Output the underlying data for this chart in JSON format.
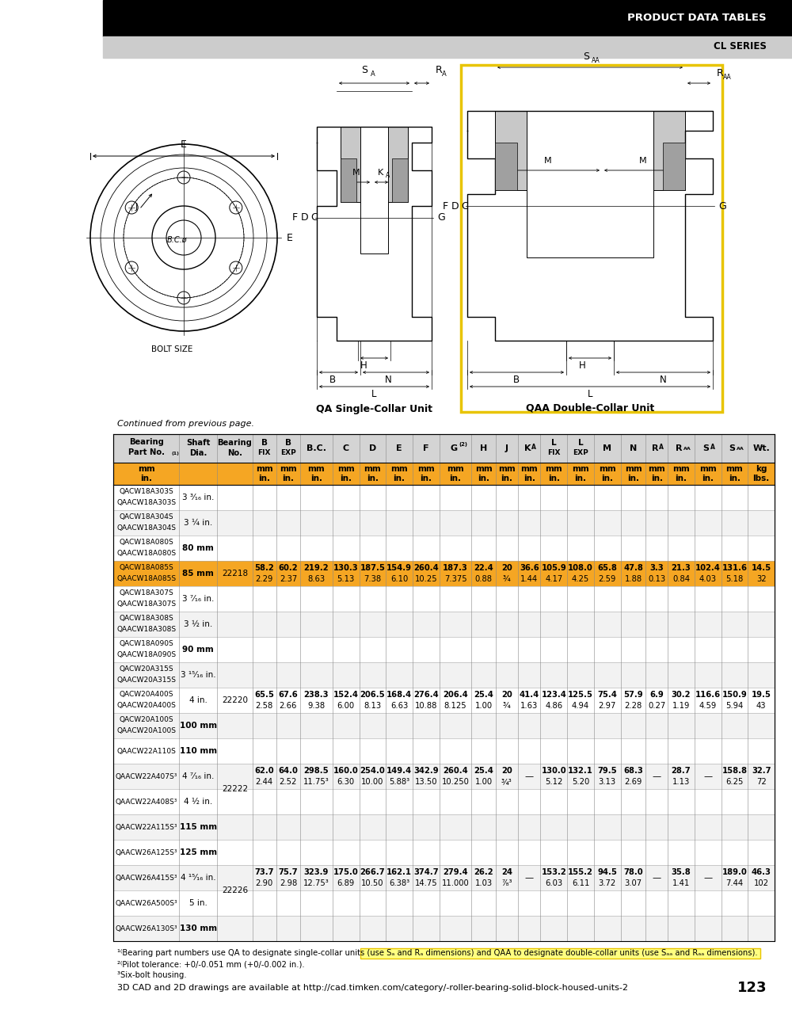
{
  "header_black_text": "PRODUCT DATA TABLES",
  "header_gray_text": "CL SERIES",
  "continued_text": "Continued from previous page.",
  "rows": [
    {
      "part1": "QACW18A303S",
      "part2": "QAACW18A303S",
      "shaft": "3 ³⁄₁₆ in.",
      "shaft_bold": false,
      "bearing": "",
      "b_fix": "",
      "b_exp": "",
      "bc": "",
      "c": "",
      "d": "",
      "e": "",
      "f": "",
      "g": "",
      "h": "",
      "j": "",
      "ka": "",
      "l_fix": "",
      "l_exp": "",
      "m": "",
      "n": "",
      "ra": "",
      "raa": "",
      "sa": "",
      "saa": "",
      "wt": ""
    },
    {
      "part1": "QACW18A304S",
      "part2": "QAACW18A304S",
      "shaft": "3 ¼ in.",
      "shaft_bold": false,
      "bearing": "",
      "b_fix": "",
      "b_exp": "",
      "bc": "",
      "c": "",
      "d": "",
      "e": "",
      "f": "",
      "g": "",
      "h": "",
      "j": "",
      "ka": "",
      "l_fix": "",
      "l_exp": "",
      "m": "",
      "n": "",
      "ra": "",
      "raa": "",
      "sa": "",
      "saa": "",
      "wt": ""
    },
    {
      "part1": "QACW18A080S",
      "part2": "QAACW18A080S",
      "shaft": "80 mm",
      "shaft_bold": true,
      "bearing": "",
      "b_fix": "",
      "b_exp": "",
      "bc": "",
      "c": "",
      "d": "",
      "e": "",
      "f": "",
      "g": "",
      "h": "",
      "j": "",
      "ka": "",
      "l_fix": "",
      "l_exp": "",
      "m": "",
      "n": "",
      "ra": "",
      "raa": "",
      "sa": "",
      "saa": "",
      "wt": ""
    },
    {
      "part1": "QACW18A085S",
      "part2": "QAACW18A085S",
      "shaft": "85 mm",
      "shaft_bold": true,
      "bearing": "22218",
      "b_fix": "58.2",
      "b_fix2": "2.29",
      "b_exp": "60.2",
      "b_exp2": "2.37",
      "bc": "219.2",
      "bc2": "8.63",
      "c": "130.3",
      "c2": "5.13",
      "d": "187.5",
      "d2": "7.38",
      "e": "154.9",
      "e2": "6.10",
      "f": "260.4",
      "f2": "10.25",
      "g": "187.3",
      "g2": "7.375",
      "h": "22.4",
      "h2": "0.88",
      "j": "20",
      "j2": "¾",
      "ka": "36.6",
      "ka2": "1.44",
      "l_fix": "105.9",
      "l_fix2": "4.17",
      "l_exp": "108.0",
      "l_exp2": "4.25",
      "m": "65.8",
      "m2": "2.59",
      "n": "47.8",
      "n2": "1.88",
      "ra": "3.3",
      "ra2": "0.13",
      "raa": "21.3",
      "raa2": "0.84",
      "sa": "102.4",
      "sa2": "4.03",
      "saa": "131.6",
      "saa2": "5.18",
      "wt": "14.5",
      "wt2": "32",
      "highlight": true
    },
    {
      "part1": "QACW18A307S",
      "part2": "QAACW18A307S",
      "shaft": "3 ⁷⁄₁₆ in.",
      "shaft_bold": false,
      "bearing": "",
      "b_fix": "",
      "b_exp": "",
      "bc": "",
      "c": "",
      "d": "",
      "e": "",
      "f": "",
      "g": "",
      "h": "",
      "j": "",
      "ka": "",
      "l_fix": "",
      "l_exp": "",
      "m": "",
      "n": "",
      "ra": "",
      "raa": "",
      "sa": "",
      "saa": "",
      "wt": ""
    },
    {
      "part1": "QACW18A308S",
      "part2": "QAACW18A308S",
      "shaft": "3 ½ in.",
      "shaft_bold": false,
      "bearing": "",
      "b_fix": "",
      "b_exp": "",
      "bc": "",
      "c": "",
      "d": "",
      "e": "",
      "f": "",
      "g": "",
      "h": "",
      "j": "",
      "ka": "",
      "l_fix": "",
      "l_exp": "",
      "m": "",
      "n": "",
      "ra": "",
      "raa": "",
      "sa": "",
      "saa": "",
      "wt": ""
    },
    {
      "part1": "QACW18A090S",
      "part2": "QAACW18A090S",
      "shaft": "90 mm",
      "shaft_bold": true,
      "bearing": "",
      "b_fix": "",
      "b_exp": "",
      "bc": "",
      "c": "",
      "d": "",
      "e": "",
      "f": "",
      "g": "",
      "h": "",
      "j": "",
      "ka": "",
      "l_fix": "",
      "l_exp": "",
      "m": "",
      "n": "",
      "ra": "",
      "raa": "",
      "sa": "",
      "saa": "",
      "wt": ""
    },
    {
      "part1": "QACW20A315S",
      "part2": "QAACW20A315S",
      "shaft": "3 ¹⁵⁄₁₆ in.",
      "shaft_bold": false,
      "bearing": "",
      "b_fix": "",
      "b_exp": "",
      "bc": "",
      "c": "",
      "d": "",
      "e": "",
      "f": "",
      "g": "",
      "h": "",
      "j": "",
      "ka": "",
      "l_fix": "",
      "l_exp": "",
      "m": "",
      "n": "",
      "ra": "",
      "raa": "",
      "sa": "",
      "saa": "",
      "wt": ""
    },
    {
      "part1": "QACW20A400S",
      "part2": "QAACW20A400S",
      "shaft": "4 in.",
      "shaft_bold": false,
      "bearing": "22220",
      "b_fix": "65.5",
      "b_fix2": "2.58",
      "b_exp": "67.6",
      "b_exp2": "2.66",
      "bc": "238.3",
      "bc2": "9.38",
      "c": "152.4",
      "c2": "6.00",
      "d": "206.5",
      "d2": "8.13",
      "e": "168.4",
      "e2": "6.63",
      "f": "276.4",
      "f2": "10.88",
      "g": "206.4",
      "g2": "8.125",
      "h": "25.4",
      "h2": "1.00",
      "j": "20",
      "j2": "¾",
      "ka": "41.4",
      "ka2": "1.63",
      "l_fix": "123.4",
      "l_fix2": "4.86",
      "l_exp": "125.5",
      "l_exp2": "4.94",
      "m": "75.4",
      "m2": "2.97",
      "n": "57.9",
      "n2": "2.28",
      "ra": "6.9",
      "ra2": "0.27",
      "raa": "30.2",
      "raa2": "1.19",
      "sa": "116.6",
      "sa2": "4.59",
      "saa": "150.9",
      "saa2": "5.94",
      "wt": "19.5",
      "wt2": "43"
    },
    {
      "part1": "QACW20A100S",
      "part2": "QAACW20A100S",
      "shaft": "100 mm",
      "shaft_bold": true,
      "bearing": "",
      "b_fix": "",
      "b_exp": "",
      "bc": "",
      "c": "",
      "d": "",
      "e": "",
      "f": "",
      "g": "",
      "h": "",
      "j": "",
      "ka": "",
      "l_fix": "",
      "l_exp": "",
      "m": "",
      "n": "",
      "ra": "",
      "raa": "",
      "sa": "",
      "saa": "",
      "wt": ""
    },
    {
      "part1": "QAACW22A110S",
      "part2": "",
      "shaft": "110 mm",
      "shaft_bold": true,
      "bearing": "",
      "b_fix": "",
      "b_exp": "",
      "bc": "",
      "c": "",
      "d": "",
      "e": "",
      "f": "",
      "g": "",
      "h": "",
      "j": "",
      "ka": "",
      "l_fix": "",
      "l_exp": "",
      "m": "",
      "n": "",
      "ra": "",
      "raa": "",
      "sa": "",
      "saa": "",
      "wt": ""
    },
    {
      "part1": "QAACW22A407S³",
      "part2": "",
      "shaft": "4 ⁷⁄₁₆ in.",
      "shaft_bold": false,
      "bearing": "22222",
      "b_fix": "62.0",
      "b_fix2": "2.44",
      "b_exp": "64.0",
      "b_exp2": "2.52",
      "bc": "298.5",
      "bc2": "11.75³",
      "c": "160.0",
      "c2": "6.30",
      "d": "254.0",
      "d2": "10.00",
      "e": "149.4",
      "e2": "5.88³",
      "f": "342.9",
      "f2": "13.50",
      "g": "260.4",
      "g2": "10.250",
      "h": "25.4",
      "h2": "1.00",
      "j": "20",
      "j2": "¾³",
      "ka": "—",
      "ka2": "",
      "l_fix": "130.0",
      "l_fix2": "5.12",
      "l_exp": "132.1",
      "l_exp2": "5.20",
      "m": "79.5",
      "m2": "3.13",
      "n": "68.3",
      "n2": "2.69",
      "ra": "—",
      "ra2": "",
      "raa": "28.7",
      "raa2": "1.13",
      "sa": "—",
      "sa2": "",
      "saa": "158.8",
      "saa2": "6.25",
      "wt": "32.7",
      "wt2": "72"
    },
    {
      "part1": "QAACW22A408S³",
      "part2": "",
      "shaft": "4 ½ in.",
      "shaft_bold": false,
      "bearing": "",
      "b_fix": "",
      "b_exp": "",
      "bc": "",
      "c": "",
      "d": "",
      "e": "",
      "f": "",
      "g": "",
      "h": "",
      "j": "",
      "ka": "",
      "l_fix": "",
      "l_exp": "",
      "m": "",
      "n": "",
      "ra": "",
      "raa": "",
      "sa": "",
      "saa": "",
      "wt": ""
    },
    {
      "part1": "QAACW22A115S³",
      "part2": "",
      "shaft": "115 mm",
      "shaft_bold": true,
      "bearing": "",
      "b_fix": "",
      "b_exp": "",
      "bc": "",
      "c": "",
      "d": "",
      "e": "",
      "f": "",
      "g": "",
      "h": "",
      "j": "",
      "ka": "",
      "l_fix": "",
      "l_exp": "",
      "m": "",
      "n": "",
      "ra": "",
      "raa": "",
      "sa": "",
      "saa": "",
      "wt": ""
    },
    {
      "part1": "QAACW26A125S³",
      "part2": "",
      "shaft": "125 mm",
      "shaft_bold": true,
      "bearing": "",
      "b_fix": "",
      "b_exp": "",
      "bc": "",
      "c": "",
      "d": "",
      "e": "",
      "f": "",
      "g": "",
      "h": "",
      "j": "",
      "ka": "",
      "l_fix": "",
      "l_exp": "",
      "m": "",
      "n": "",
      "ra": "",
      "raa": "",
      "sa": "",
      "saa": "",
      "wt": ""
    },
    {
      "part1": "QAACW26A415S³",
      "part2": "",
      "shaft": "4 ¹⁵⁄₁₆ in.",
      "shaft_bold": false,
      "bearing": "22226",
      "b_fix": "73.7",
      "b_fix2": "2.90",
      "b_exp": "75.7",
      "b_exp2": "2.98",
      "bc": "323.9",
      "bc2": "12.75³",
      "c": "175.0",
      "c2": "6.89",
      "d": "266.7",
      "d2": "10.50",
      "e": "162.1",
      "e2": "6.38³",
      "f": "374.7",
      "f2": "14.75",
      "g": "279.4",
      "g2": "11.000",
      "h": "26.2",
      "h2": "1.03",
      "j": "24",
      "j2": "⁷⁄₈³",
      "ka": "—",
      "ka2": "",
      "l_fix": "153.2",
      "l_fix2": "6.03",
      "l_exp": "155.2",
      "l_exp2": "6.11",
      "m": "94.5",
      "m2": "3.72",
      "n": "78.0",
      "n2": "3.07",
      "ra": "—",
      "ra2": "",
      "raa": "35.8",
      "raa2": "1.41",
      "sa": "—",
      "sa2": "",
      "saa": "189.0",
      "saa2": "7.44",
      "wt": "46.3",
      "wt2": "102"
    },
    {
      "part1": "QAACW26A500S³",
      "part2": "",
      "shaft": "5 in.",
      "shaft_bold": false,
      "bearing": "",
      "b_fix": "",
      "b_exp": "",
      "bc": "",
      "c": "",
      "d": "",
      "e": "",
      "f": "",
      "g": "",
      "h": "",
      "j": "",
      "ka": "",
      "l_fix": "",
      "l_exp": "",
      "m": "",
      "n": "",
      "ra": "",
      "raa": "",
      "sa": "",
      "saa": "",
      "wt": ""
    },
    {
      "part1": "QAACW26A130S³",
      "part2": "",
      "shaft": "130 mm",
      "shaft_bold": true,
      "bearing": "",
      "b_fix": "",
      "b_exp": "",
      "bc": "",
      "c": "",
      "d": "",
      "e": "",
      "f": "",
      "g": "",
      "h": "",
      "j": "",
      "ka": "",
      "l_fix": "",
      "l_exp": "",
      "m": "",
      "n": "",
      "ra": "",
      "raa": "",
      "sa": "",
      "saa": "",
      "wt": ""
    }
  ],
  "merge_groups": [
    {
      "rows": [
        0,
        1,
        2,
        3,
        4,
        5,
        6
      ],
      "data_row": 3
    },
    {
      "rows": [
        7,
        8,
        9
      ],
      "data_row": 8
    },
    {
      "rows": [
        10,
        11,
        12,
        13
      ],
      "data_row": 11
    },
    {
      "rows": [
        14,
        15,
        16,
        17
      ],
      "data_row": 15
    }
  ],
  "footnote1": "¹⁽Bearing part numbers use QA to designate single-collar units (use S",
  "footnote1b": "A",
  "footnote1c": " and R",
  "footnote1d": "A",
  "footnote1e": " dimensions) and ",
  "footnote1f": "QAA to designate double-collar units (use S",
  "footnote1g": "AA",
  "footnote1h": " and R",
  "footnote1i": "AA",
  "footnote1j": " dimensions).",
  "footnote2": "²⁽Pilot tolerance: +0/-0.051 mm (+0/-0.002 in.).",
  "footnote3": "³Six-bolt housing.",
  "bottom_text": "3D CAD and 2D drawings are available at http://cad.timken.com/category/-roller-bearing-solid-block-housed-units-2",
  "page_number": "123",
  "orange_color": "#F5A623",
  "header_bg": "#D0D0D0",
  "highlight_bg": "#F5A623",
  "row_alt_bg": "#F2F2F2",
  "black": "#000000",
  "white": "#FFFFFF",
  "yellow_border": "#E8C400",
  "footnote_highlight": "#FFE680"
}
